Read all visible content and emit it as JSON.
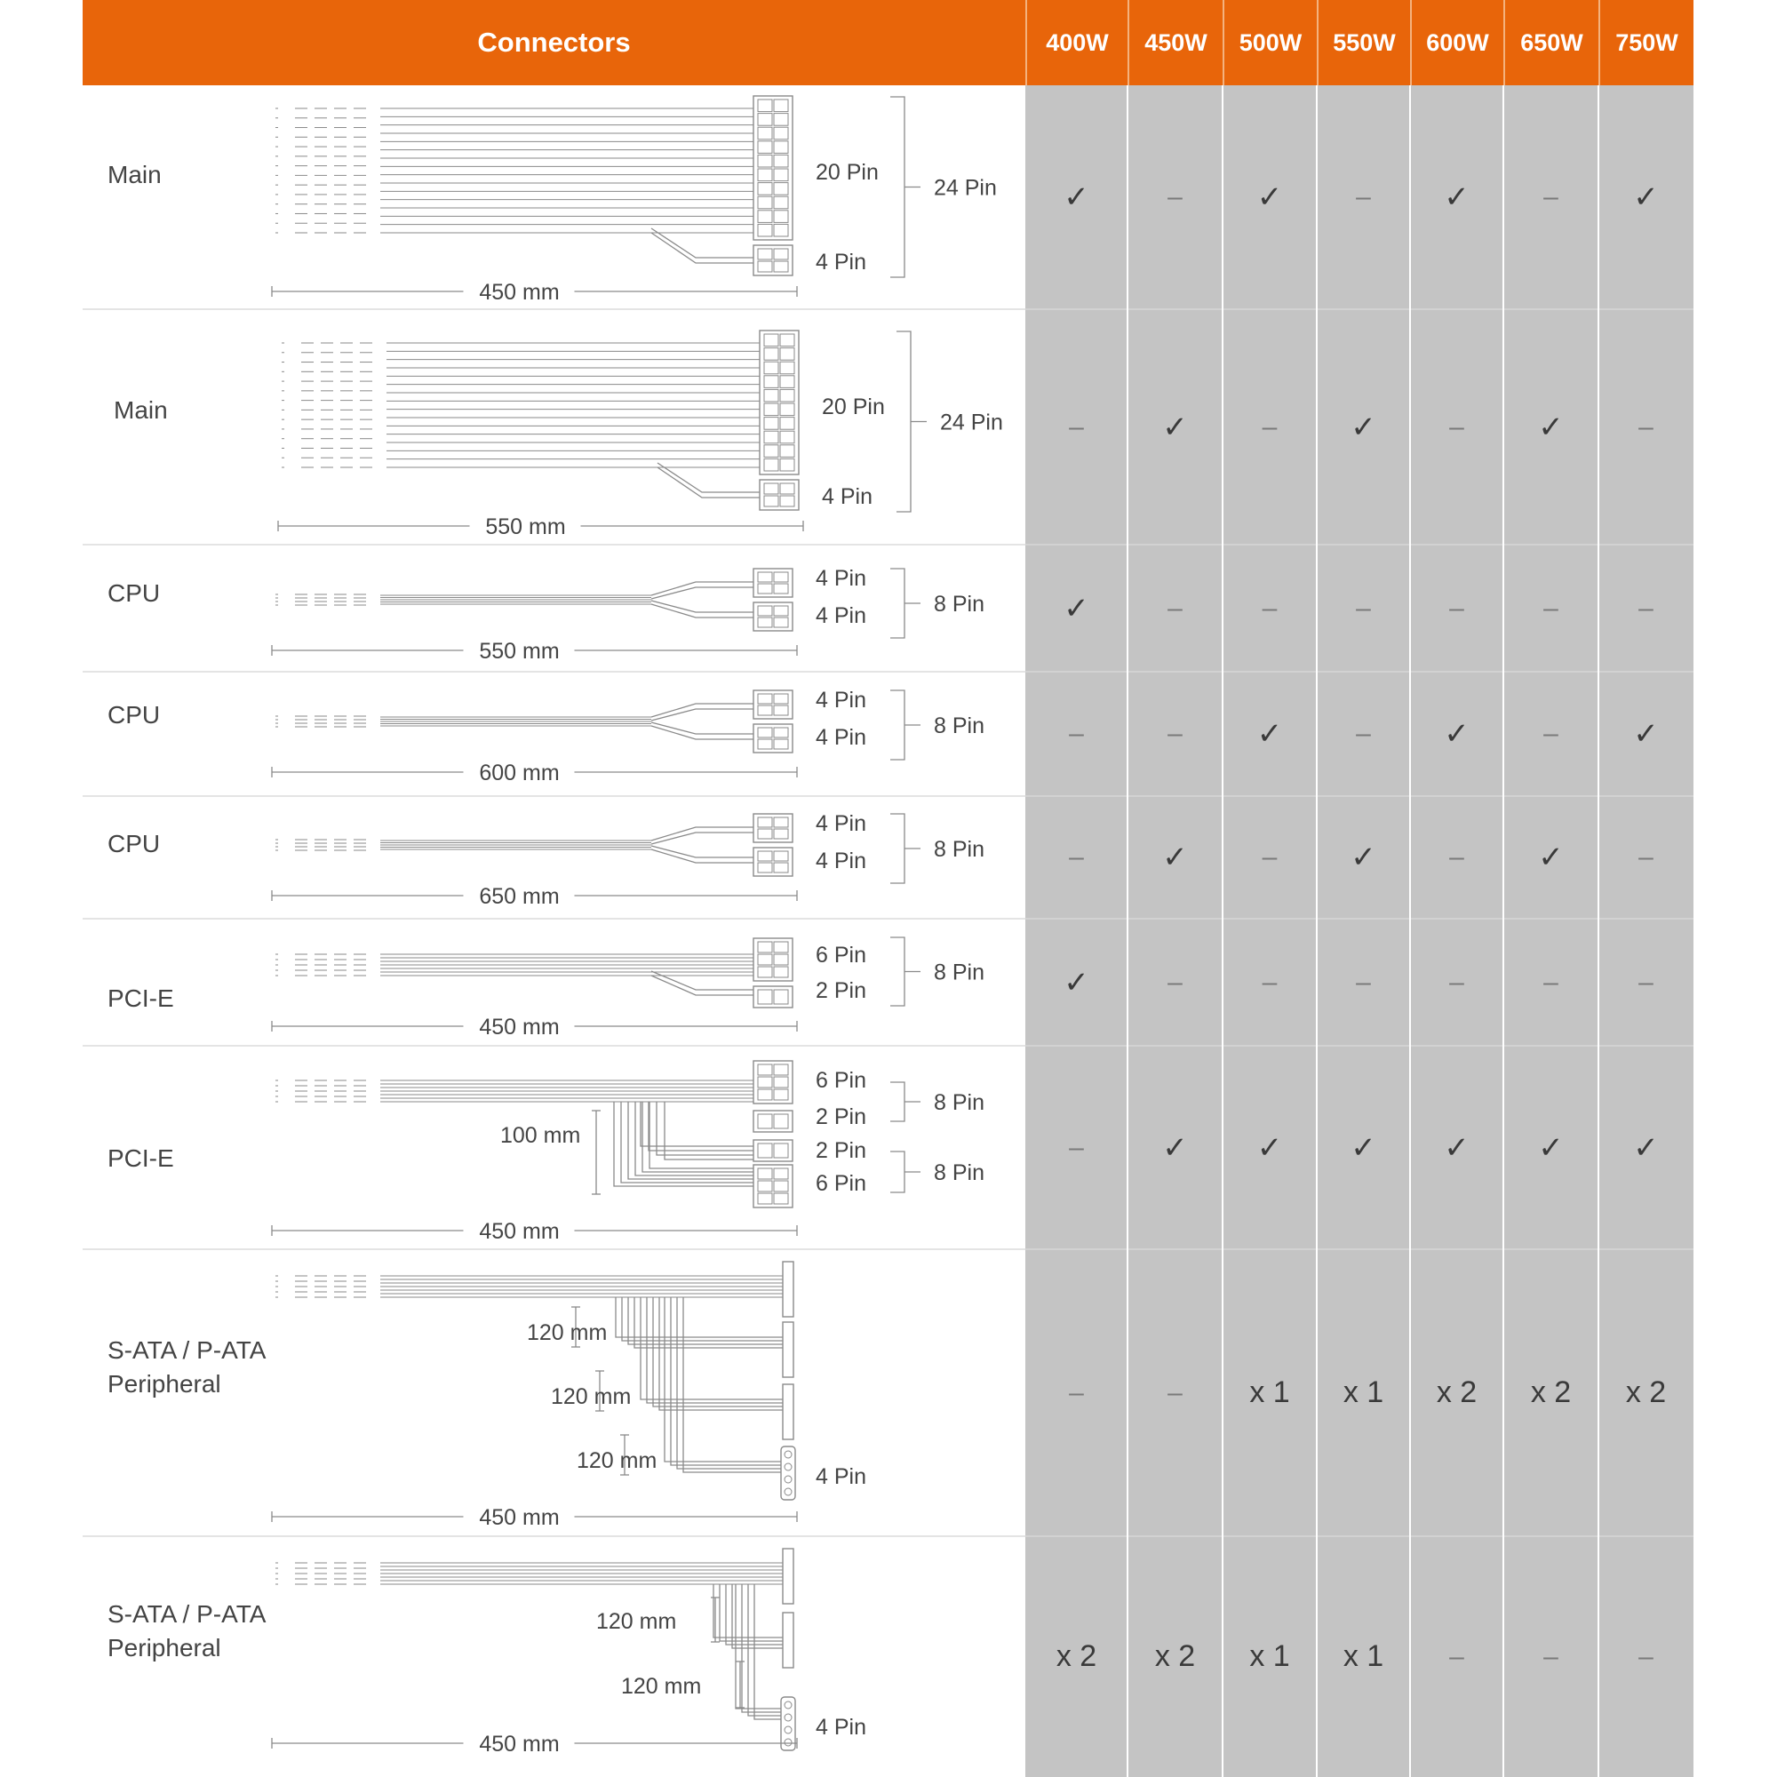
{
  "header": {
    "title": "Connectors",
    "wattages": [
      "400W",
      "450W",
      "500W",
      "550W",
      "600W",
      "650W",
      "750W"
    ],
    "accent_color": "#E8650A",
    "grid_color": "#C4C4C4"
  },
  "symbols": {
    "check": "✓",
    "dash": "–"
  },
  "rows": [
    {
      "label": [
        "Main"
      ],
      "connectors": [
        "20 Pin",
        "4 Pin"
      ],
      "combined": "24 Pin",
      "length": "450 mm",
      "values": [
        "check",
        "dash",
        "check",
        "dash",
        "check",
        "dash",
        "check"
      ]
    },
    {
      "label": [
        "Main"
      ],
      "connectors": [
        "20 Pin",
        "4 Pin"
      ],
      "combined": "24 Pin",
      "length": "550 mm",
      "values": [
        "dash",
        "check",
        "dash",
        "check",
        "dash",
        "check",
        "dash"
      ]
    },
    {
      "label": [
        "CPU"
      ],
      "connectors": [
        "4 Pin",
        "4 Pin"
      ],
      "combined": "8 Pin",
      "length": "550 mm",
      "values": [
        "check",
        "dash",
        "dash",
        "dash",
        "dash",
        "dash",
        "dash"
      ]
    },
    {
      "label": [
        "CPU"
      ],
      "connectors": [
        "4 Pin",
        "4 Pin"
      ],
      "combined": "8 Pin",
      "length": "600 mm",
      "values": [
        "dash",
        "dash",
        "check",
        "dash",
        "check",
        "dash",
        "check"
      ]
    },
    {
      "label": [
        "CPU"
      ],
      "connectors": [
        "4 Pin",
        "4 Pin"
      ],
      "combined": "8 Pin",
      "length": "650 mm",
      "values": [
        "dash",
        "check",
        "dash",
        "check",
        "dash",
        "check",
        "dash"
      ]
    },
    {
      "label": [
        "PCI-E"
      ],
      "connectors": [
        "6 Pin",
        "2 Pin"
      ],
      "combined": "8 Pin",
      "length": "450 mm",
      "values": [
        "check",
        "dash",
        "dash",
        "dash",
        "dash",
        "dash",
        "dash"
      ]
    },
    {
      "label": [
        "PCI-E"
      ],
      "connectors": [
        "6 Pin",
        "2 Pin",
        "2 Pin",
        "6 Pin"
      ],
      "combined": [
        "8 Pin",
        "8 Pin"
      ],
      "branch": "100 mm",
      "length": "450 mm",
      "values": [
        "dash",
        "check",
        "check",
        "check",
        "check",
        "check",
        "check"
      ]
    },
    {
      "label": [
        "S-ATA / P-ATA",
        "Peripheral"
      ],
      "branches": [
        "120 mm",
        "120 mm",
        "120 mm"
      ],
      "end_connector": "4 Pin",
      "length": "450 mm",
      "values": [
        "–",
        "–",
        "x 1",
        "x 1",
        "x 2",
        "x 2",
        "x 2"
      ]
    },
    {
      "label": [
        "S-ATA / P-ATA",
        "Peripheral"
      ],
      "branches": [
        "120 mm",
        "120 mm"
      ],
      "end_connector": "4 Pin",
      "length": "450 mm",
      "values": [
        "x 2",
        "x 2",
        "x 1",
        "x 1",
        "–",
        "–",
        "–"
      ]
    }
  ]
}
